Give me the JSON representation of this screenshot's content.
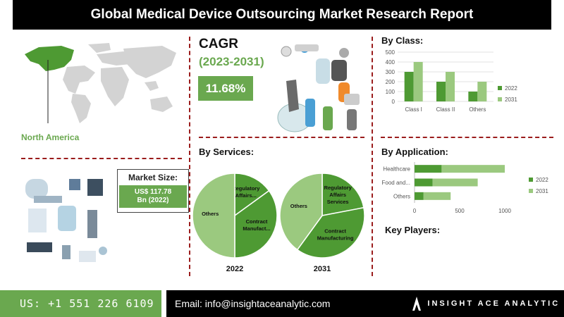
{
  "title": "Global Medical Device Outsourcing Market Research Report",
  "region": {
    "label": "North America"
  },
  "cagr": {
    "heading": "CAGR",
    "period": "(2023-2031)",
    "value": "11.68%"
  },
  "market_size": {
    "label": "Market Size:",
    "value_line1": "US$ 117.78",
    "value_line2": "Bn (2022)"
  },
  "sections": {
    "by_class": "By Class:",
    "by_services": "By Services:",
    "by_application": "By Application:",
    "key_players": "Key Players:"
  },
  "colors": {
    "dark_green": "#4e9a33",
    "light_green": "#9bc97f",
    "accent_red": "#9b1c1c"
  },
  "footer": {
    "phone": "US: +1 551 226 6109",
    "email": "Email: info@insightaceanalytic.com",
    "brand": "INSIGHT ACE ANALYTIC"
  },
  "chart_data": [
    {
      "type": "bar",
      "title": "By Class:",
      "categories": [
        "Class I",
        "Class II",
        "Others"
      ],
      "series": [
        {
          "name": "2022",
          "values": [
            300,
            200,
            100
          ],
          "color": "#4e9a33"
        },
        {
          "name": "2031",
          "values": [
            400,
            300,
            200
          ],
          "color": "#9bc97f"
        }
      ],
      "yticks": [
        "0",
        "100",
        "200",
        "300",
        "400",
        "500"
      ],
      "ylim": [
        0,
        500
      ],
      "legend": "right"
    },
    {
      "type": "bar",
      "orientation": "horizontal",
      "title": "By Application:",
      "categories": [
        "Healthcare",
        "Food and...",
        "Others"
      ],
      "series": [
        {
          "name": "2022",
          "values": [
            300,
            200,
            100
          ],
          "color": "#4e9a33"
        },
        {
          "name": "2031",
          "values": [
            700,
            500,
            300
          ],
          "color": "#9bc97f"
        }
      ],
      "xticks": [
        "0",
        "500",
        "1000"
      ],
      "xlim": [
        0,
        1000
      ],
      "legend": "right"
    },
    {
      "type": "pie",
      "title": "By Services:",
      "year": "2022",
      "slices": [
        {
          "label": "Regulatory Affairs...",
          "value": 15,
          "color": "#4e9a33"
        },
        {
          "label": "Contract Manufact...",
          "value": 35,
          "color": "#4e9a33"
        },
        {
          "label": "Others",
          "value": 50,
          "color": "#9bc97f"
        }
      ]
    },
    {
      "type": "pie",
      "year": "2031",
      "slices": [
        {
          "label": "Regulatory Affairs Services",
          "value": 22,
          "color": "#4e9a33"
        },
        {
          "label": "Contract Manufacturing",
          "value": 38,
          "color": "#4e9a33"
        },
        {
          "label": "Others",
          "value": 40,
          "color": "#9bc97f"
        }
      ]
    }
  ]
}
